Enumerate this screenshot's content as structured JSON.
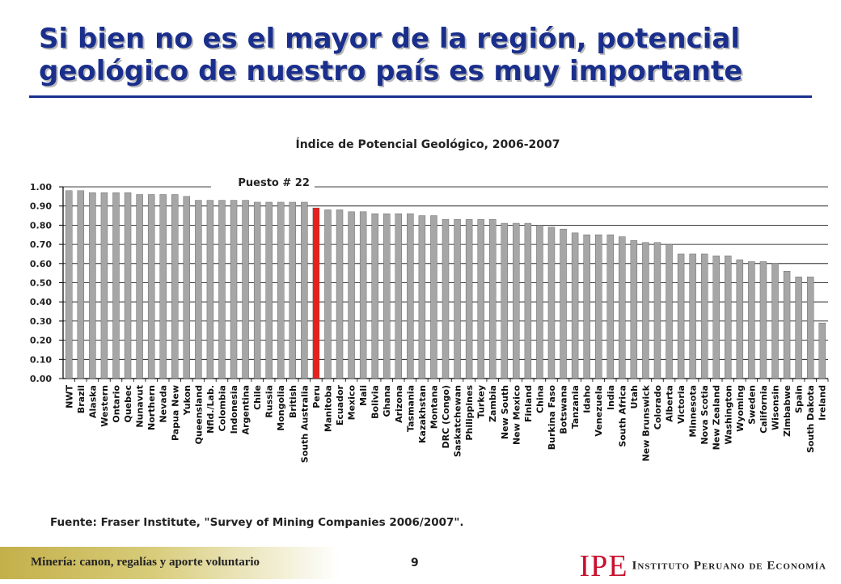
{
  "slide": {
    "title": "Si bien no es el mayor de la región, potencial geológico de nuestro país es muy importante",
    "source": "Fuente: Fraser Institute, \"Survey of Mining Companies 2006/2007\".",
    "footer_left": "Minería: canon, regalías y aporte voluntario",
    "page_number": "9",
    "logo_mark": "IPE",
    "logo_text": "Instituto Peruano de Economía"
  },
  "chart_data": {
    "type": "bar",
    "title": "Índice de Potencial Geológico, 2006-2007",
    "annotation": "Puesto # 22",
    "highlight_index": 21,
    "colors": {
      "bar": "#a6a6a6",
      "highlight": "#e8201c",
      "grid": "#000000"
    },
    "ylim": [
      0,
      1.0
    ],
    "yticks": [
      "0.00",
      "0.10",
      "0.20",
      "0.30",
      "0.40",
      "0.50",
      "0.60",
      "0.70",
      "0.80",
      "0.90",
      "1.00"
    ],
    "grid": true,
    "categories": [
      "NWT",
      "Brazil",
      "Alaska",
      "Western",
      "Ontario",
      "Quebec",
      "Nunavut",
      "Northern",
      "Nevada",
      "Papua New",
      "Yukon",
      "Queensland",
      "Nfld./Lab.",
      "Colombia",
      "Indonesia",
      "Argentina",
      "Chile",
      "Russia",
      "Mongolia",
      "British",
      "South Australia",
      "Peru",
      "Manitoba",
      "Ecuador",
      "Mexico",
      "Mali",
      "Bolivia",
      "Ghana",
      "Arizona",
      "Tasmania",
      "Kazakhstan",
      "Montana",
      "DRC (Congo)",
      "Saskatchewan",
      "Philippines",
      "Turkey",
      "Zambia",
      "New South",
      "New Mexico",
      "Finland",
      "China",
      "Burkina Faso",
      "Botswana",
      "Tanzania",
      "Idaho",
      "Venezuela",
      "India",
      "South Africa",
      "Utah",
      "New Brunswick",
      "Colorado",
      "Alberta",
      "Victoria",
      "Minnesota",
      "Nova Scotia",
      "New Zealand",
      "Washington",
      "Wyoming",
      "Sweden",
      "California",
      "Wisonsin",
      "Zimbabwe",
      "Spain",
      "South Dakota",
      "Ireland"
    ],
    "values": [
      0.98,
      0.98,
      0.97,
      0.97,
      0.97,
      0.97,
      0.96,
      0.96,
      0.96,
      0.96,
      0.95,
      0.93,
      0.93,
      0.93,
      0.93,
      0.93,
      0.92,
      0.92,
      0.92,
      0.92,
      0.92,
      0.89,
      0.88,
      0.88,
      0.87,
      0.87,
      0.86,
      0.86,
      0.86,
      0.86,
      0.85,
      0.85,
      0.83,
      0.83,
      0.83,
      0.83,
      0.83,
      0.81,
      0.81,
      0.81,
      0.8,
      0.79,
      0.78,
      0.76,
      0.75,
      0.75,
      0.75,
      0.74,
      0.72,
      0.71,
      0.71,
      0.7,
      0.65,
      0.65,
      0.65,
      0.64,
      0.64,
      0.62,
      0.61,
      0.61,
      0.6,
      0.56,
      0.53,
      0.53,
      0.29
    ]
  }
}
